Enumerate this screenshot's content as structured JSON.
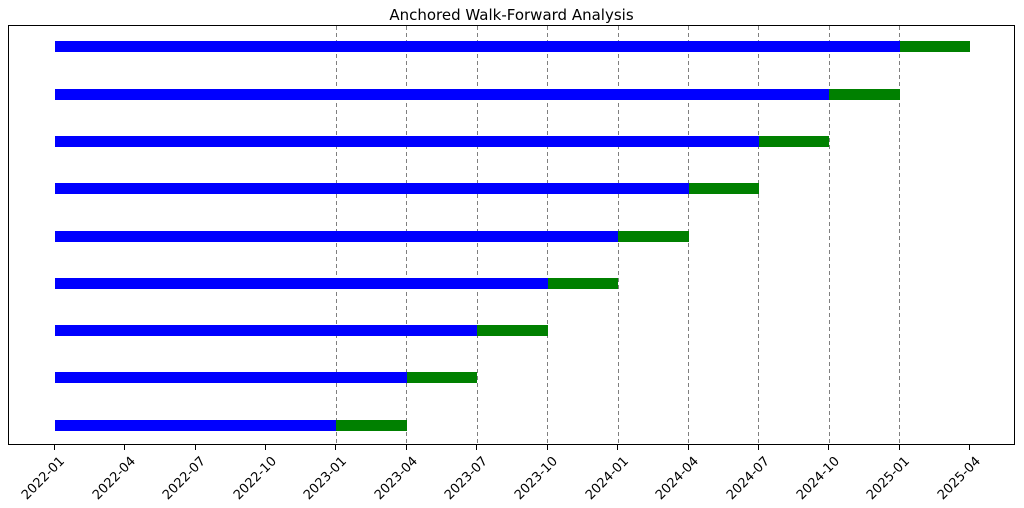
{
  "figure": {
    "background": "#ffffff"
  },
  "chart_data": {
    "type": "bar",
    "subtype": "anchored-walk-forward-gantt",
    "title": "Anchored Walk-Forward Analysis",
    "orientation": "horizontal",
    "x_axis": {
      "start": "2022-01",
      "end": "2025-04",
      "tick_labels": [
        "2022-01",
        "2022-04",
        "2022-07",
        "2022-10",
        "2023-01",
        "2023-04",
        "2023-07",
        "2023-10",
        "2024-01",
        "2024-04",
        "2024-07",
        "2024-10",
        "2025-01",
        "2025-04"
      ],
      "tick_rotation_deg": 45
    },
    "y_axis": {
      "tick_labels": []
    },
    "grid": {
      "vertical_dashed_at": [
        "2023-01",
        "2023-04",
        "2023-07",
        "2023-10",
        "2024-01",
        "2024-04",
        "2024-07",
        "2024-10",
        "2025-01"
      ],
      "color": "#7f7f7f",
      "style": "dashed"
    },
    "colors": {
      "train": "#0000ff",
      "test": "#008000",
      "spine": "#000000"
    },
    "n_folds": 9,
    "folds": [
      {
        "train_start": "2022-01",
        "train_end": "2025-01",
        "test_start": "2025-01",
        "test_end": "2025-04"
      },
      {
        "train_start": "2022-01",
        "train_end": "2024-10",
        "test_start": "2024-10",
        "test_end": "2025-01"
      },
      {
        "train_start": "2022-01",
        "train_end": "2024-07",
        "test_start": "2024-07",
        "test_end": "2024-10"
      },
      {
        "train_start": "2022-01",
        "train_end": "2024-04",
        "test_start": "2024-04",
        "test_end": "2024-07"
      },
      {
        "train_start": "2022-01",
        "train_end": "2024-01",
        "test_start": "2024-01",
        "test_end": "2024-04"
      },
      {
        "train_start": "2022-01",
        "train_end": "2023-10",
        "test_start": "2023-10",
        "test_end": "2024-01"
      },
      {
        "train_start": "2022-01",
        "train_end": "2023-07",
        "test_start": "2023-07",
        "test_end": "2023-10"
      },
      {
        "train_start": "2022-01",
        "train_end": "2023-04",
        "test_start": "2023-04",
        "test_end": "2023-07"
      },
      {
        "train_start": "2022-01",
        "train_end": "2023-01",
        "test_start": "2023-01",
        "test_end": "2023-04"
      }
    ]
  }
}
